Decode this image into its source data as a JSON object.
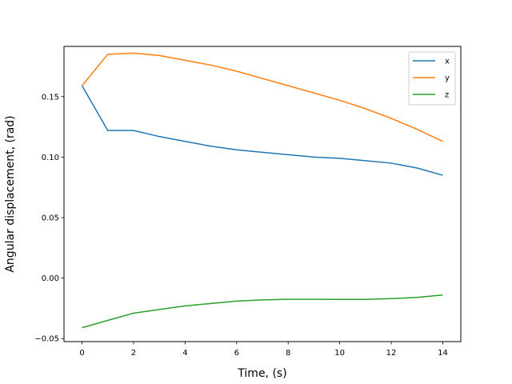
{
  "chart_data": {
    "type": "line",
    "xlabel": "Time, (s)",
    "ylabel": "Angular displacement, (rad)",
    "xlim": [
      -0.7,
      14.7
    ],
    "ylim": [
      -0.0525,
      0.1915
    ],
    "xticks": [
      0,
      2,
      4,
      6,
      8,
      10,
      12,
      14
    ],
    "yticks": [
      -0.05,
      0.0,
      0.05,
      0.1,
      0.15
    ],
    "ytick_labels": [
      "−0.05",
      "0.00",
      "0.05",
      "0.10",
      "0.15"
    ],
    "grid": false,
    "legend_position": "top-right",
    "x": [
      0,
      1,
      2,
      3,
      4,
      5,
      6,
      7,
      8,
      9,
      10,
      11,
      12,
      13,
      14
    ],
    "series": [
      {
        "name": "x",
        "color": "#1f77b4",
        "values": [
          0.159,
          0.122,
          0.122,
          0.117,
          0.113,
          0.109,
          0.106,
          0.104,
          0.102,
          0.1,
          0.099,
          0.097,
          0.095,
          0.091,
          0.085
        ]
      },
      {
        "name": "y",
        "color": "#ff7f0e",
        "values": [
          0.159,
          0.185,
          0.186,
          0.184,
          0.18,
          0.176,
          0.171,
          0.165,
          0.159,
          0.153,
          0.147,
          0.14,
          0.132,
          0.123,
          0.113
        ]
      },
      {
        "name": "z",
        "color": "#2ca02c",
        "values": [
          -0.041,
          -0.035,
          -0.029,
          -0.026,
          -0.023,
          -0.021,
          -0.019,
          -0.018,
          -0.0175,
          -0.0175,
          -0.0176,
          -0.0176,
          -0.017,
          -0.016,
          -0.014
        ]
      }
    ]
  }
}
